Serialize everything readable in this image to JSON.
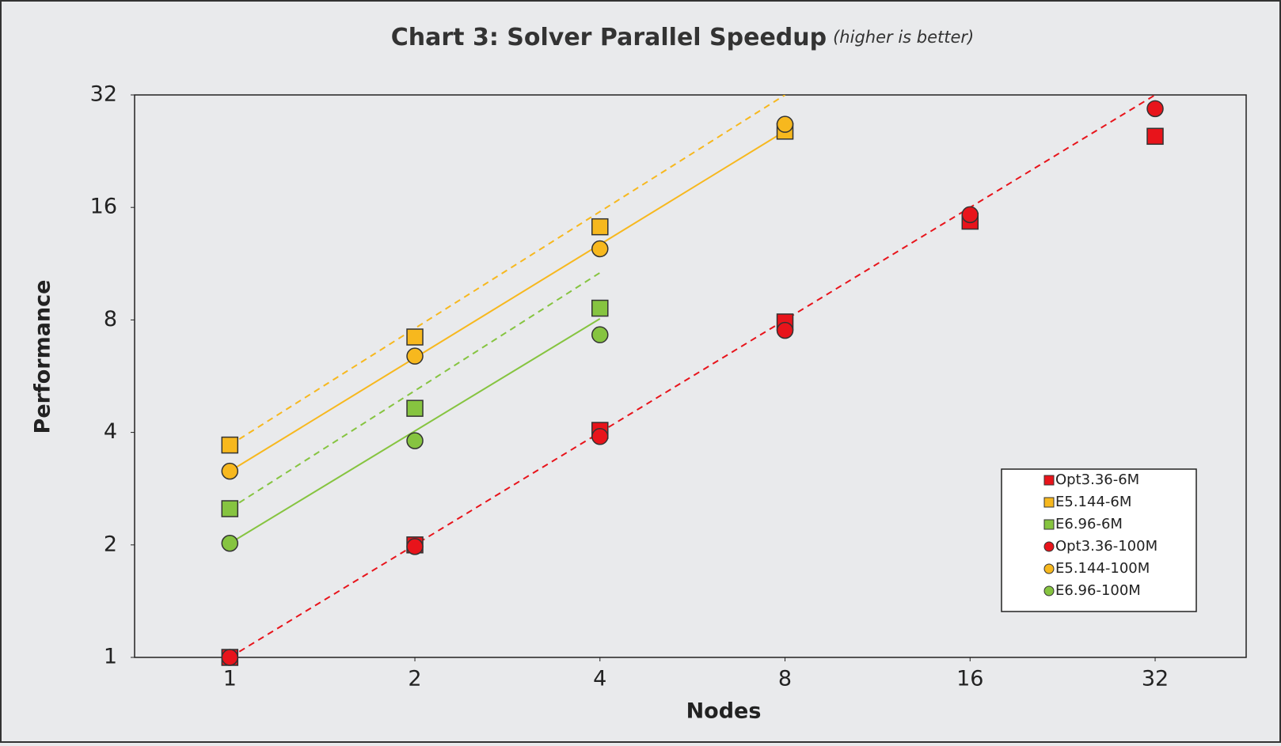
{
  "chart_data": {
    "type": "scatter",
    "title": "Chart 3: Solver Parallel Speedup",
    "subtitle": "(higher is better)",
    "x_label": "Nodes",
    "y_label": "Performance",
    "x_log": true,
    "y_log": true,
    "xlim": [
      0.7,
      45
    ],
    "ylim": [
      1,
      32
    ],
    "xticks": [
      1,
      2,
      4,
      8,
      16,
      32
    ],
    "yticks": [
      1,
      2,
      4,
      8,
      16,
      32
    ],
    "grid": false,
    "legend": "lower right",
    "series": [
      {
        "name": "Opt3.36-6M",
        "color": "#e8141b",
        "marker": "square",
        "x": [
          1,
          2,
          4,
          8,
          16,
          32
        ],
        "values": [
          1,
          2,
          4.05,
          7.9,
          14.7,
          24.8
        ]
      },
      {
        "name": "E5.144-6M",
        "color": "#f7b81e",
        "marker": "square",
        "x": [
          1,
          2,
          4,
          8
        ],
        "values": [
          3.7,
          7.2,
          14.2,
          25.6
        ]
      },
      {
        "name": "E6.96-6M",
        "color": "#86c440",
        "marker": "square",
        "x": [
          1,
          2,
          4
        ],
        "values": [
          2.5,
          4.64,
          8.6
        ]
      },
      {
        "name": "Opt3.36-100M",
        "color": "#e8141b",
        "marker": "circle",
        "x": [
          1,
          2,
          4,
          8,
          16,
          32
        ],
        "values": [
          1,
          1.98,
          3.9,
          7.5,
          15.3,
          29.4
        ]
      },
      {
        "name": "E5.144-100M",
        "color": "#f7b81e",
        "marker": "circle",
        "x": [
          1,
          2,
          4,
          8
        ],
        "values": [
          3.15,
          6.4,
          12.4,
          26.7
        ]
      },
      {
        "name": "E6.96-100M",
        "color": "#86c440",
        "marker": "circle",
        "x": [
          1,
          2,
          4
        ],
        "values": [
          2.02,
          3.8,
          7.3
        ]
      }
    ],
    "reference_lines": [
      {
        "color": "#e8141b",
        "dashed": true,
        "x": [
          1,
          32
        ],
        "values": [
          1,
          32
        ]
      },
      {
        "color": "#f7b81e",
        "dashed": true,
        "x": [
          1,
          8
        ],
        "values": [
          3.7,
          32
        ]
      },
      {
        "color": "#86c440",
        "dashed": true,
        "x": [
          1,
          4
        ],
        "values": [
          2.5,
          10.7
        ]
      },
      {
        "color": "#f7b81e",
        "dashed": false,
        "x": [
          1,
          8
        ],
        "values": [
          3.15,
          25.6
        ]
      },
      {
        "color": "#86c440",
        "dashed": false,
        "x": [
          1,
          4
        ],
        "values": [
          2.02,
          8.06
        ]
      }
    ]
  }
}
